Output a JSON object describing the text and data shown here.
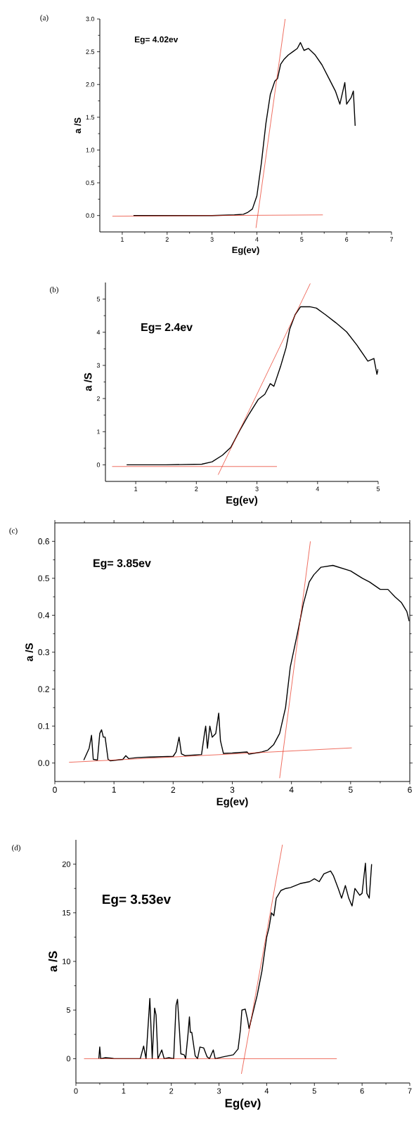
{
  "chart_data": [
    {
      "type": "line",
      "title": "(a)",
      "xlabel": "Eg(ev)",
      "ylabel": "a /S",
      "annotations": [
        "Eg= 4.02ev"
      ],
      "xlim": [
        0.5,
        7
      ],
      "ylim": [
        -0.25,
        3.0
      ],
      "xticks": [
        1,
        2,
        3,
        4,
        5,
        6,
        7
      ],
      "yticks": [
        {
          "value": 0,
          "label": "0.0"
        },
        0.5,
        {
          "value": 1,
          "label": "1.0"
        },
        1.5,
        {
          "value": 2,
          "label": "2.0"
        },
        2.5,
        {
          "value": 3,
          "label": "3.0"
        }
      ],
      "series": [
        {
          "color": "#000000",
          "x": [
            1.25,
            2.0,
            3.0,
            3.5,
            3.7,
            3.8,
            3.9,
            4.0,
            4.1,
            4.2,
            4.3,
            4.4,
            4.46,
            4.53,
            4.6,
            4.7,
            4.8,
            4.9,
            4.97,
            5.05,
            5.15,
            5.3,
            5.45,
            5.6,
            5.75,
            5.85,
            5.96,
            6.0,
            6.1,
            6.15,
            6.19
          ],
          "values": [
            0.0,
            0.0,
            0.0,
            0.01,
            0.02,
            0.05,
            0.1,
            0.3,
            0.8,
            1.4,
            1.85,
            2.05,
            2.09,
            2.31,
            2.38,
            2.45,
            2.5,
            2.55,
            2.64,
            2.52,
            2.55,
            2.45,
            2.3,
            2.1,
            1.9,
            1.7,
            2.03,
            1.7,
            1.8,
            1.9,
            1.37
          ]
        },
        {
          "color": "#e8301c",
          "x": [
            0.78,
            5.47
          ],
          "values": [
            -0.01,
            0.01
          ]
        },
        {
          "color": "#e8301c",
          "x": [
            3.98,
            4.63
          ],
          "values": [
            -0.19,
            3.0
          ]
        }
      ]
    },
    {
      "type": "line",
      "title": "(b)",
      "xlabel": "Eg(ev)",
      "ylabel": "a /S",
      "annotations": [
        "Eg= 2.4ev"
      ],
      "xlim": [
        0.5,
        5
      ],
      "ylim": [
        -0.5,
        5.5
      ],
      "xticks": [
        1,
        2,
        3,
        4,
        5
      ],
      "yticks": [
        0,
        1,
        2,
        3,
        4,
        5
      ],
      "series": [
        {
          "color": "#000000",
          "x": [
            0.85,
            1.5,
            2.09,
            2.26,
            2.43,
            2.57,
            2.72,
            2.87,
            3.02,
            3.13,
            3.22,
            3.28,
            3.39,
            3.48,
            3.54,
            3.63,
            3.72,
            3.87,
            3.98,
            4.13,
            4.3,
            4.48,
            4.65,
            4.83,
            4.93,
            4.98,
            5.0
          ],
          "values": [
            0.0,
            0.0,
            0.02,
            0.09,
            0.29,
            0.53,
            1.05,
            1.53,
            1.97,
            2.13,
            2.45,
            2.37,
            2.97,
            3.53,
            4.09,
            4.53,
            4.77,
            4.77,
            4.73,
            4.53,
            4.29,
            4.01,
            3.61,
            3.13,
            3.21,
            2.73,
            2.89
          ]
        },
        {
          "color": "#e8301c",
          "x": [
            0.61,
            3.33
          ],
          "values": [
            -0.05,
            -0.05
          ]
        },
        {
          "color": "#e8301c",
          "x": [
            2.36,
            3.88
          ],
          "values": [
            -0.3,
            5.47
          ]
        }
      ]
    },
    {
      "type": "line",
      "title": "(c)",
      "xlabel": "Eg(ev)",
      "ylabel": "a /S",
      "annotations": [
        "Eg= 3.85ev"
      ],
      "xlim": [
        0,
        6
      ],
      "ylim": [
        -0.05,
        0.65
      ],
      "xticks": [
        0,
        1,
        2,
        3,
        4,
        5,
        6
      ],
      "yticks": [
        {
          "value": 0,
          "label": "0.0"
        },
        0.1,
        0.2,
        0.3,
        0.4,
        0.5,
        0.6
      ],
      "series": [
        {
          "color": "#000000",
          "x": [
            0.49,
            0.58,
            0.62,
            0.65,
            0.72,
            0.76,
            0.79,
            0.82,
            0.85,
            0.9,
            0.94,
            1.15,
            1.2,
            1.25,
            1.4,
            1.6,
            2.0,
            2.05,
            2.1,
            2.14,
            2.2,
            2.48,
            2.53,
            2.55,
            2.58,
            2.62,
            2.66,
            2.72,
            2.77,
            2.8,
            2.85,
            3.0,
            3.25,
            3.28,
            3.5,
            3.6,
            3.7,
            3.8,
            3.9,
            3.98,
            4.1,
            4.2,
            4.3,
            4.38,
            4.5,
            4.7,
            5.0,
            5.2,
            5.32,
            5.5,
            5.63,
            5.75,
            5.86,
            5.95,
            5.99
          ],
          "values": [
            0.008,
            0.04,
            0.075,
            0.01,
            0.008,
            0.08,
            0.09,
            0.07,
            0.07,
            0.01,
            0.006,
            0.01,
            0.02,
            0.012,
            0.015,
            0.016,
            0.018,
            0.03,
            0.07,
            0.025,
            0.02,
            0.023,
            0.08,
            0.1,
            0.04,
            0.1,
            0.07,
            0.08,
            0.135,
            0.06,
            0.026,
            0.027,
            0.03,
            0.024,
            0.03,
            0.035,
            0.05,
            0.08,
            0.15,
            0.26,
            0.35,
            0.43,
            0.49,
            0.51,
            0.53,
            0.535,
            0.52,
            0.5,
            0.49,
            0.47,
            0.47,
            0.45,
            0.434,
            0.41,
            0.384
          ]
        },
        {
          "color": "#e8301c",
          "x": [
            0.24,
            5.02
          ],
          "values": [
            0.002,
            0.041
          ]
        },
        {
          "color": "#e8301c",
          "x": [
            3.8,
            4.32
          ],
          "values": [
            -0.041,
            0.6
          ]
        }
      ]
    },
    {
      "type": "line",
      "title": "(d)",
      "xlabel": "Eg(ev)",
      "ylabel": "a /S",
      "annotations": [
        "Eg= 3.53ev"
      ],
      "xlim": [
        0,
        7
      ],
      "ylim": [
        -2.5,
        22.5
      ],
      "xticks": [
        0,
        1,
        2,
        3,
        4,
        5,
        6,
        7
      ],
      "yticks": [
        0,
        5,
        10,
        15,
        20
      ],
      "series": [
        {
          "color": "#000000",
          "x": [
            0.48,
            0.5,
            0.52,
            0.62,
            0.75,
            0.8,
            1.35,
            1.42,
            1.47,
            1.55,
            1.6,
            1.65,
            1.68,
            1.72,
            1.8,
            1.85,
            1.95,
            2.05,
            2.1,
            2.13,
            2.17,
            2.2,
            2.27,
            2.3,
            2.35,
            2.38,
            2.4,
            2.43,
            2.5,
            2.55,
            2.6,
            2.68,
            2.75,
            2.8,
            2.88,
            2.92,
            3.1,
            3.3,
            3.4,
            3.45,
            3.48,
            3.55,
            3.6,
            3.63,
            3.7,
            3.8,
            3.9,
            4.0,
            4.05,
            4.1,
            4.15,
            4.2,
            4.3,
            4.4,
            4.5,
            4.7,
            4.9,
            5.0,
            5.1,
            5.2,
            5.34,
            5.4,
            5.5,
            5.57,
            5.65,
            5.72,
            5.79,
            5.85,
            5.95,
            6.0,
            6.07,
            6.1,
            6.15,
            6.2
          ],
          "values": [
            0,
            1.2,
            0,
            0.1,
            0.05,
            0,
            0,
            1.3,
            0,
            6.2,
            0,
            5.2,
            4.5,
            0,
            0.9,
            0,
            0.1,
            0,
            5.5,
            6.1,
            3,
            0.5,
            0.4,
            0,
            2.5,
            4.3,
            2.7,
            2.7,
            0.3,
            0,
            1.2,
            1.1,
            0.2,
            0,
            0.9,
            0,
            0.2,
            0.4,
            1,
            3,
            5.0,
            5.1,
            4.0,
            3.1,
            4.5,
            6.5,
            9,
            12.5,
            13.5,
            15,
            14.7,
            16.5,
            17.3,
            17.5,
            17.6,
            18,
            18.2,
            18.5,
            18.2,
            19,
            19.3,
            18.8,
            17.5,
            16.5,
            17.8,
            16.5,
            15.7,
            17.5,
            16.8,
            17,
            20.1,
            17,
            16.5,
            20
          ]
        },
        {
          "color": "#e8301c",
          "x": [
            0.17,
            5.47
          ],
          "values": [
            0,
            0
          ]
        },
        {
          "color": "#e8301c",
          "x": [
            3.47,
            4.33
          ],
          "values": [
            -1.56,
            22.0
          ]
        }
      ]
    }
  ]
}
